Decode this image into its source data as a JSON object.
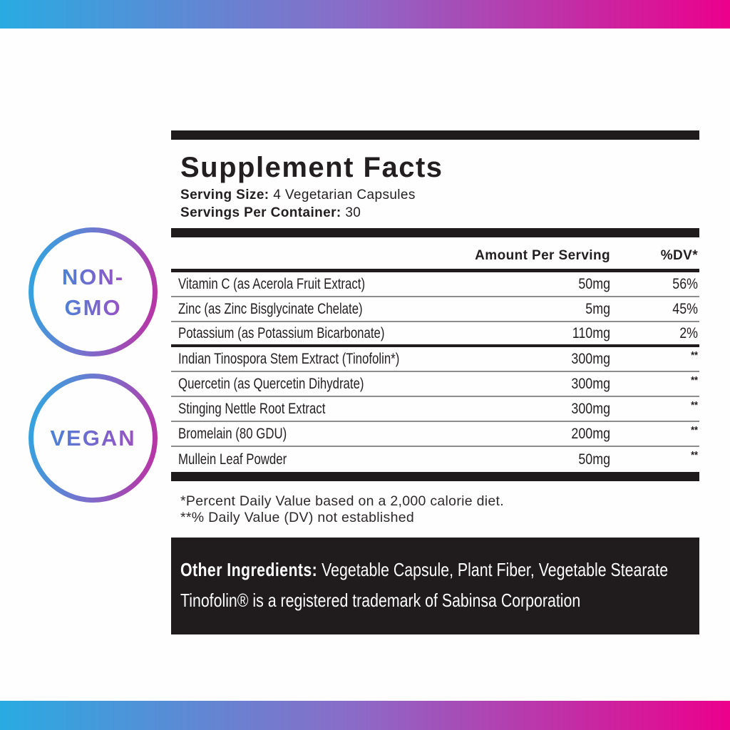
{
  "theme": {
    "gradient_start": "#29abe2",
    "gradient_end": "#ec008c",
    "ink": "#1f1b1c",
    "badge_text_gradient_start": "#4b82d6",
    "badge_text_gradient_end": "#9b50c5"
  },
  "badges": {
    "non_gmo": {
      "line1": "NON-",
      "line2": "GMO"
    },
    "vegan": {
      "line1": "VEGAN"
    }
  },
  "panel": {
    "title": "Supplement Facts",
    "serving_size_label": "Serving Size:",
    "serving_size_value": " 4 Vegetarian Capsules",
    "servings_per_container_label": "Servings Per Container:",
    "servings_per_container_value": " 30",
    "columns": {
      "amount": "Amount Per Serving",
      "dv": "%DV*"
    },
    "rows": [
      {
        "name": "Vitamin C (as Acerola Fruit Extract)",
        "amount": "50mg",
        "dv": "56%"
      },
      {
        "name": "Zinc (as Zinc Bisglycinate Chelate)",
        "amount": "5mg",
        "dv": "45%"
      },
      {
        "name": "Potassium (as Potassium Bicarbonate)",
        "amount": "110mg",
        "dv": "2%",
        "thick_below": true
      },
      {
        "name": "Indian Tinospora Stem Extract (Tinofolin*)",
        "amount": "300mg",
        "dv": "**"
      },
      {
        "name": "Quercetin (as Quercetin Dihydrate)",
        "amount": "300mg",
        "dv": "**"
      },
      {
        "name": "Stinging Nettle Root Extract",
        "amount": "300mg",
        "dv": "**"
      },
      {
        "name": "Bromelain (80 GDU)",
        "amount": "200mg",
        "dv": "**"
      },
      {
        "name": "Mullein Leaf Powder",
        "amount": "50mg",
        "dv": "**"
      }
    ],
    "footnote1": "*Percent Daily Value based on a 2,000 calorie diet.",
    "footnote2": "**% Daily Value (DV) not established",
    "other_ingredients_label": "Other  Ingredients:",
    "other_ingredients_value": "  Vegetable Capsule, Plant Fiber,  Vegetable Stearate",
    "trademark_note": "Tinofolin® is a registered trademark of Sabinsa Corporation"
  }
}
